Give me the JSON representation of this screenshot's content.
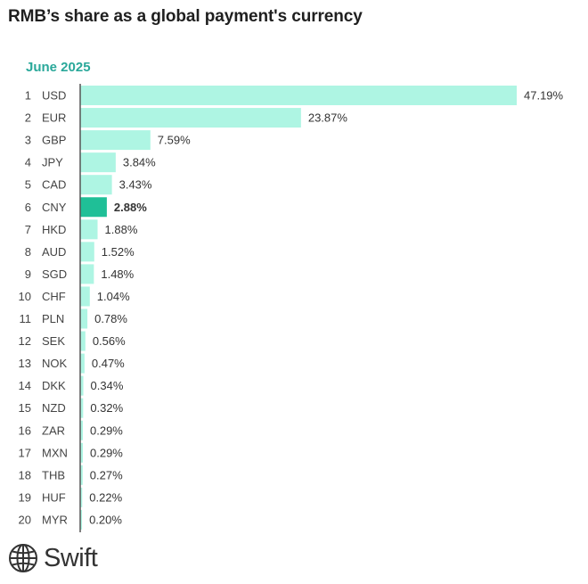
{
  "title": "RMB’s share as a global payment's currency",
  "chart_data": {
    "type": "bar",
    "orientation": "horizontal",
    "subtitle": "June 2025",
    "ranks": [
      "1",
      "2",
      "3",
      "4",
      "5",
      "6",
      "7",
      "8",
      "9",
      "10",
      "11",
      "12",
      "13",
      "14",
      "15",
      "16",
      "17",
      "18",
      "19",
      "20"
    ],
    "categories": [
      "USD",
      "EUR",
      "GBP",
      "JPY",
      "CAD",
      "CNY",
      "HKD",
      "AUD",
      "SGD",
      "CHF",
      "PLN",
      "SEK",
      "NOK",
      "DKK",
      "NZD",
      "ZAR",
      "MXN",
      "THB",
      "HUF",
      "MYR"
    ],
    "values": [
      47.19,
      23.87,
      7.59,
      3.84,
      3.43,
      2.88,
      1.88,
      1.52,
      1.48,
      1.04,
      0.78,
      0.56,
      0.47,
      0.34,
      0.32,
      0.29,
      0.29,
      0.27,
      0.22,
      0.2
    ],
    "value_labels": [
      "47.19%",
      "23.87%",
      "7.59%",
      "3.84%",
      "3.43%",
      "2.88%",
      "1.88%",
      "1.52%",
      "1.48%",
      "1.04%",
      "0.78%",
      "0.56%",
      "0.47%",
      "0.34%",
      "0.32%",
      "0.29%",
      "0.29%",
      "0.27%",
      "0.22%",
      "0.20%"
    ],
    "highlight_category": "CNY",
    "colors": {
      "bar": "#aef5e3",
      "highlight": "#1fbf97",
      "axis": "#555555"
    },
    "xlim": [
      0,
      47.19
    ],
    "grid": false,
    "legend": "none"
  },
  "logo": {
    "text": "Swift",
    "icon": "globe-icon"
  }
}
